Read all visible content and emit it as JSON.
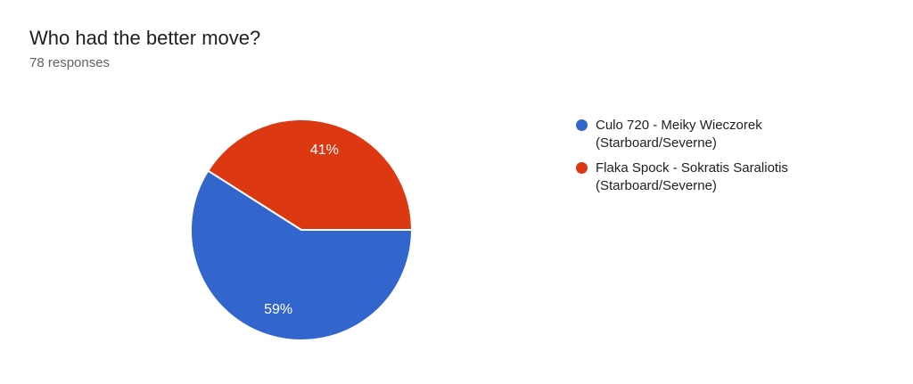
{
  "card": {
    "title": "Who had the better move?",
    "subtitle": "78 responses"
  },
  "chart_data": {
    "type": "pie",
    "title": "Who had the better move?",
    "subtitle": "78 responses",
    "total_responses": 78,
    "start_angle_deg": 0,
    "direction": "clockwise",
    "legend_position": "right",
    "slice_label_color": "#ffffff",
    "slice_divider_color": "#ffffff",
    "slices": [
      {
        "label": "Culo 720 - Meiky Wieczorek (Starboard/Severne)",
        "value_percent": 59,
        "data_label": "59%",
        "color": "#3366CC"
      },
      {
        "label": "Flaka Spock - Sokratis Saraliotis (Starboard/Severne)",
        "value_percent": 41,
        "data_label": "41%",
        "color": "#DC3912"
      }
    ]
  }
}
